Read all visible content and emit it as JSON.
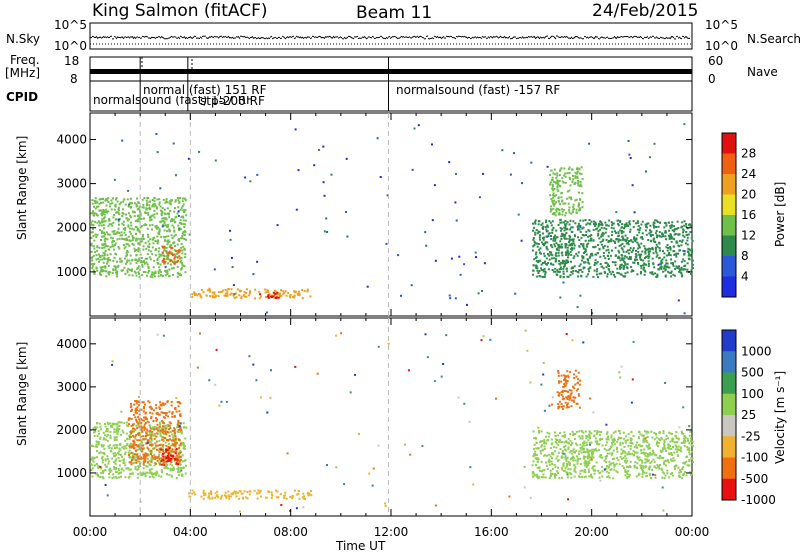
{
  "header": {
    "station": "King Salmon (fitACF)",
    "beam": "Beam 11",
    "date": "24/Feb/2015"
  },
  "side_labels": {
    "nsky": "N.Sky",
    "freq_l1": "Freq.",
    "freq_l2": "[MHz]",
    "cpid": "CPID",
    "nsearch": "N.Search",
    "nave": "Nave"
  },
  "strip_ticks": {
    "nsky_top": "10^5",
    "nsky_bottom": "10^0",
    "nsearch_top": "10^5",
    "nsearch_bottom": "10^0",
    "freq_top": "18",
    "freq_bottom": "8",
    "nave_top": "60",
    "nave_bottom": "0"
  },
  "cpid_labels": {
    "seg1": "normalsound (fast) 157 RF",
    "seg2": "normal (fast) 151 RF",
    "seg3": "stp-200 RF",
    "seg4": "normalsound (fast) -157 RF"
  },
  "chart_data": [
    {
      "type": "heatmap",
      "title": "Power",
      "ylabel": "Slant Range [km]",
      "xlabel": "Time UT",
      "xlim": [
        "00:00",
        "24:00"
      ],
      "ylim": [
        0,
        4600
      ],
      "y_ticks": [
        1000,
        2000,
        3000,
        4000
      ],
      "colorbar": {
        "label": "Power [dB]",
        "ticks": [
          4,
          8,
          12,
          16,
          20,
          24,
          28
        ],
        "colors": [
          "#1f2de0",
          "#2a58d8",
          "#2d8a4a",
          "#6ec04a",
          "#e8e020",
          "#f0a020",
          "#f06010",
          "#e01010"
        ]
      },
      "echo_regions": [
        {
          "t0": 0.0,
          "t1": 3.8,
          "r0": 900,
          "r1": 2700,
          "level": 14
        },
        {
          "t0": 2.8,
          "t1": 3.6,
          "r0": 1200,
          "r1": 1600,
          "level": 26
        },
        {
          "t0": 4.0,
          "t1": 8.8,
          "r0": 420,
          "r1": 640,
          "level": 20
        },
        {
          "t0": 6.6,
          "t1": 7.5,
          "r0": 430,
          "r1": 560,
          "level": 28
        },
        {
          "t0": 17.6,
          "t1": 24.0,
          "r0": 900,
          "r1": 2200,
          "level": 10
        },
        {
          "t0": 18.3,
          "t1": 19.6,
          "r0": 2300,
          "r1": 3400,
          "level": 12
        }
      ]
    },
    {
      "type": "heatmap",
      "title": "Velocity",
      "ylabel": "Slant Range [km]",
      "xlabel": "Time UT",
      "xlim": [
        "00:00",
        "24:00"
      ],
      "ylim": [
        0,
        4600
      ],
      "y_ticks": [
        1000,
        2000,
        3000,
        4000
      ],
      "x_tick_labels": [
        "00:00",
        "04:00",
        "08:00",
        "12:00",
        "16:00",
        "20:00",
        "00:00"
      ],
      "colorbar": {
        "label": "Velocity [m s⁻¹]",
        "ticks": [
          "1000",
          "500",
          "100",
          "25",
          "-25",
          "-100",
          "-500",
          "-1000"
        ],
        "colors": [
          "#1f3ccc",
          "#3a7abf",
          "#3aa050",
          "#8dd050",
          "#c8c8c0",
          "#f0b030",
          "#f07010",
          "#e81010"
        ]
      },
      "echo_regions": [
        {
          "t0": 0.0,
          "t1": 3.8,
          "r0": 900,
          "r1": 2200,
          "level": "25"
        },
        {
          "t0": 1.5,
          "t1": 3.6,
          "r0": 1200,
          "r1": 2700,
          "level": "-500"
        },
        {
          "t0": 2.8,
          "t1": 3.5,
          "r0": 1200,
          "r1": 1600,
          "level": "-1000"
        },
        {
          "t0": 3.9,
          "t1": 8.8,
          "r0": 420,
          "r1": 620,
          "level": "-100"
        },
        {
          "t0": 17.6,
          "t1": 24.0,
          "r0": 900,
          "r1": 2000,
          "level": "25"
        },
        {
          "t0": 18.6,
          "t1": 19.5,
          "r0": 2500,
          "r1": 3400,
          "level": "-500"
        }
      ]
    }
  ]
}
